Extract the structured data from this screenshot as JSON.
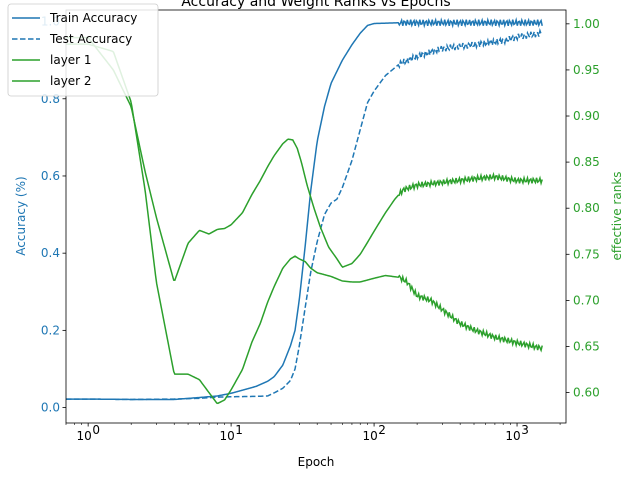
{
  "chart_data": {
    "type": "line",
    "title": "Accuracy and Weight Ranks vs Epochs",
    "xlabel": "Epoch",
    "ylabel_left": "Accuracy (%)",
    "ylabel_right": "effective ranks",
    "x_scale": "log",
    "xlim": [
      0.7,
      2200
    ],
    "ylim_left": [
      -0.04,
      1.03
    ],
    "ylim_right": [
      0.567,
      1.015
    ],
    "x_ticks": [
      1,
      10,
      100,
      1000
    ],
    "x_tick_labels": [
      "10^0",
      "10^1",
      "10^2",
      "10^3"
    ],
    "y_ticks_left": [
      0.0,
      0.2,
      0.4,
      0.6,
      0.8,
      1.0
    ],
    "y_tick_labels_left": [
      "0.0",
      "0.2",
      "0.4",
      "0.6",
      "0.8",
      "1.0"
    ],
    "y_ticks_right": [
      0.6,
      0.65,
      0.7,
      0.75,
      0.8,
      0.85,
      0.9,
      0.95,
      1.0
    ],
    "y_tick_labels_right": [
      "0.60",
      "0.65",
      "0.70",
      "0.75",
      "0.80",
      "0.85",
      "0.90",
      "0.95",
      "1.00"
    ],
    "grid": false,
    "legend_position": "top-left",
    "left_axis_color": "#1f77b4",
    "right_axis_color": "#2ca02c",
    "series": [
      {
        "name": "Train Accuracy",
        "axis": "left",
        "color": "#1f77b4",
        "style": "solid",
        "points": [
          [
            0.7,
            0.022
          ],
          [
            1,
            0.022
          ],
          [
            2,
            0.021
          ],
          [
            4,
            0.021
          ],
          [
            6,
            0.026
          ],
          [
            8,
            0.03
          ],
          [
            10,
            0.037
          ],
          [
            12,
            0.045
          ],
          [
            15,
            0.055
          ],
          [
            18,
            0.068
          ],
          [
            20,
            0.08
          ],
          [
            23,
            0.11
          ],
          [
            26,
            0.16
          ],
          [
            28,
            0.2
          ],
          [
            30,
            0.28
          ],
          [
            33,
            0.42
          ],
          [
            36,
            0.56
          ],
          [
            40,
            0.69
          ],
          [
            45,
            0.78
          ],
          [
            50,
            0.84
          ],
          [
            60,
            0.9
          ],
          [
            70,
            0.94
          ],
          [
            80,
            0.97
          ],
          [
            90,
            0.99
          ],
          [
            100,
            0.995
          ],
          [
            150,
            0.997
          ],
          [
            300,
            0.997
          ],
          [
            1000,
            0.997
          ],
          [
            1500,
            0.997
          ]
        ]
      },
      {
        "name": "Test Accuracy",
        "axis": "left",
        "color": "#1f77b4",
        "style": "dashed",
        "points": [
          [
            0.7,
            0.022
          ],
          [
            1,
            0.022
          ],
          [
            2,
            0.021
          ],
          [
            4,
            0.022
          ],
          [
            6,
            0.024
          ],
          [
            8,
            0.027
          ],
          [
            10,
            0.028
          ],
          [
            15,
            0.029
          ],
          [
            18,
            0.03
          ],
          [
            20,
            0.038
          ],
          [
            23,
            0.05
          ],
          [
            26,
            0.07
          ],
          [
            28,
            0.1
          ],
          [
            30,
            0.16
          ],
          [
            33,
            0.26
          ],
          [
            36,
            0.35
          ],
          [
            40,
            0.43
          ],
          [
            45,
            0.5
          ],
          [
            50,
            0.53
          ],
          [
            55,
            0.54
          ],
          [
            60,
            0.57
          ],
          [
            70,
            0.64
          ],
          [
            80,
            0.72
          ],
          [
            90,
            0.79
          ],
          [
            100,
            0.82
          ],
          [
            120,
            0.86
          ],
          [
            150,
            0.89
          ],
          [
            200,
            0.91
          ],
          [
            300,
            0.93
          ],
          [
            500,
            0.94
          ],
          [
            800,
            0.95
          ],
          [
            1000,
            0.96
          ],
          [
            1500,
            0.97
          ]
        ]
      },
      {
        "name": "layer 1",
        "axis": "right",
        "color": "#2ca02c",
        "style": "solid",
        "points": [
          [
            0.7,
            0.985
          ],
          [
            1,
            0.985
          ],
          [
            1.5,
            0.95
          ],
          [
            2,
            0.91
          ],
          [
            2.5,
            0.84
          ],
          [
            3,
            0.79
          ],
          [
            4,
            0.72
          ],
          [
            5,
            0.762
          ],
          [
            6,
            0.776
          ],
          [
            7,
            0.772
          ],
          [
            8,
            0.777
          ],
          [
            9,
            0.778
          ],
          [
            10,
            0.782
          ],
          [
            12,
            0.795
          ],
          [
            14,
            0.815
          ],
          [
            16,
            0.83
          ],
          [
            18,
            0.845
          ],
          [
            20,
            0.857
          ],
          [
            23,
            0.87
          ],
          [
            25,
            0.875
          ],
          [
            27,
            0.874
          ],
          [
            29,
            0.865
          ],
          [
            31,
            0.85
          ],
          [
            34,
            0.825
          ],
          [
            38,
            0.8
          ],
          [
            42,
            0.78
          ],
          [
            48,
            0.758
          ],
          [
            55,
            0.745
          ],
          [
            60,
            0.736
          ],
          [
            70,
            0.74
          ],
          [
            80,
            0.75
          ],
          [
            90,
            0.763
          ],
          [
            100,
            0.775
          ],
          [
            120,
            0.795
          ],
          [
            140,
            0.81
          ],
          [
            160,
            0.82
          ],
          [
            200,
            0.825
          ],
          [
            300,
            0.828
          ],
          [
            500,
            0.832
          ],
          [
            700,
            0.834
          ],
          [
            1000,
            0.83
          ],
          [
            1500,
            0.83
          ]
        ]
      },
      {
        "name": "layer 2",
        "axis": "right",
        "color": "#2ca02c",
        "style": "solid",
        "points": [
          [
            0.7,
            0.978
          ],
          [
            1,
            0.978
          ],
          [
            1.5,
            0.97
          ],
          [
            2,
            0.915
          ],
          [
            2.5,
            0.82
          ],
          [
            3,
            0.72
          ],
          [
            4,
            0.62
          ],
          [
            5,
            0.62
          ],
          [
            6,
            0.614
          ],
          [
            7,
            0.6
          ],
          [
            8,
            0.588
          ],
          [
            9,
            0.592
          ],
          [
            10,
            0.603
          ],
          [
            12,
            0.625
          ],
          [
            14,
            0.655
          ],
          [
            16,
            0.675
          ],
          [
            18,
            0.698
          ],
          [
            20,
            0.715
          ],
          [
            23,
            0.735
          ],
          [
            26,
            0.745
          ],
          [
            28,
            0.748
          ],
          [
            30,
            0.745
          ],
          [
            33,
            0.742
          ],
          [
            36,
            0.735
          ],
          [
            40,
            0.73
          ],
          [
            50,
            0.726
          ],
          [
            60,
            0.721
          ],
          [
            70,
            0.72
          ],
          [
            80,
            0.72
          ],
          [
            100,
            0.724
          ],
          [
            120,
            0.727
          ],
          [
            150,
            0.725
          ],
          [
            170,
            0.72
          ],
          [
            200,
            0.705
          ],
          [
            250,
            0.7
          ],
          [
            300,
            0.69
          ],
          [
            400,
            0.675
          ],
          [
            500,
            0.668
          ],
          [
            700,
            0.66
          ],
          [
            1000,
            0.654
          ],
          [
            1500,
            0.648
          ]
        ]
      }
    ]
  }
}
